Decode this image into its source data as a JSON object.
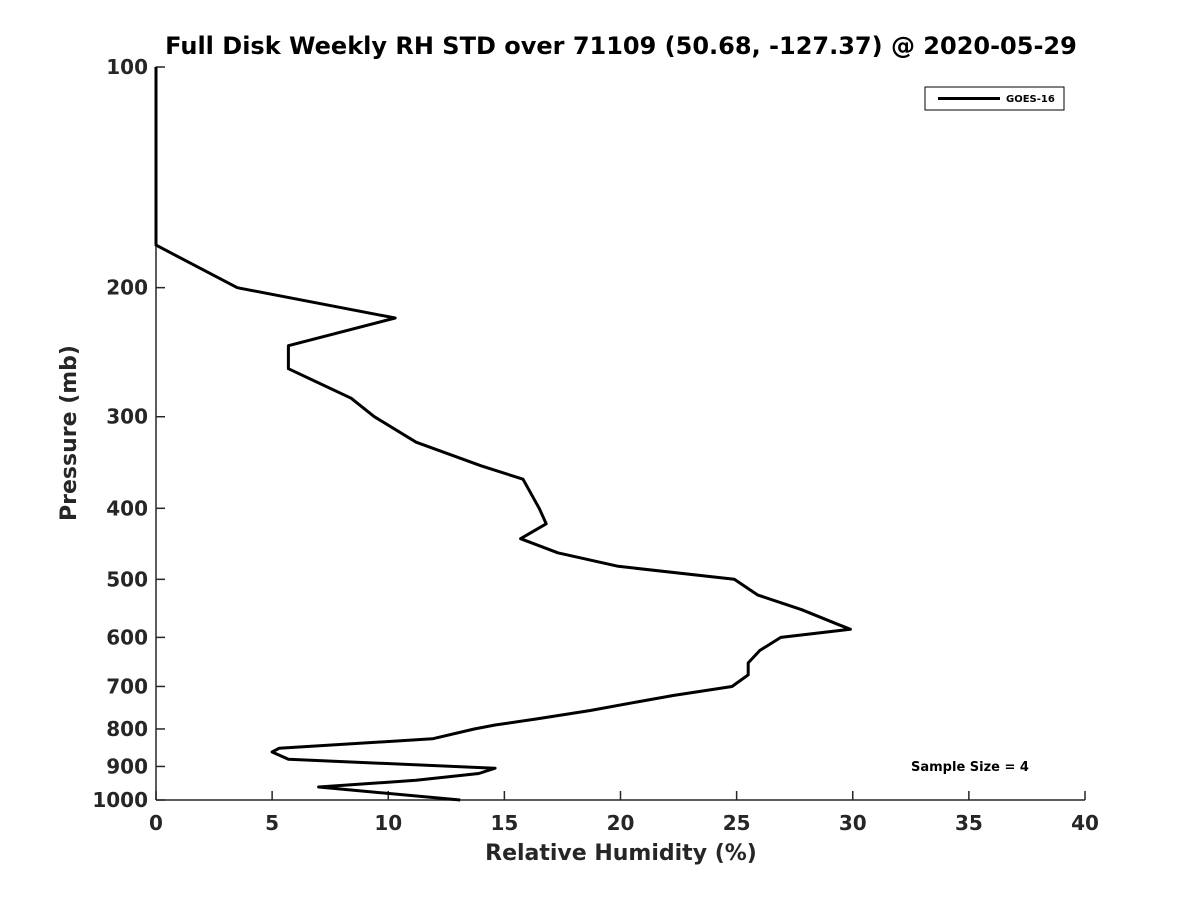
{
  "chart_data": {
    "type": "line",
    "title": "Full Disk Weekly RH STD over 71109 (50.68, -127.37) @ 2020-05-29",
    "xlabel": "Relative Humidity (%)",
    "ylabel": "Pressure (mb)",
    "xlim": [
      0,
      40
    ],
    "ylim": [
      100,
      1000
    ],
    "y_scale": "log",
    "y_reversed": true,
    "x_ticks": [
      "0",
      "5",
      "10",
      "15",
      "20",
      "25",
      "30",
      "35",
      "40"
    ],
    "y_ticks": [
      "100",
      "200",
      "300",
      "400",
      "500",
      "600",
      "700",
      "800",
      "900",
      "1000"
    ],
    "grid": false,
    "legend": {
      "position": "top-right",
      "entries": [
        "GOES-16"
      ]
    },
    "annotation": "Sample Size = 4",
    "series": [
      {
        "name": "GOES-16",
        "color": "#000000",
        "points": [
          [
            0,
            100
          ],
          [
            0,
            125
          ],
          [
            0,
            150
          ],
          [
            0,
            175
          ],
          [
            3.5,
            200
          ],
          [
            10.3,
            220
          ],
          [
            5.7,
            240
          ],
          [
            5.7,
            258
          ],
          [
            8.4,
            283
          ],
          [
            9.4,
            300
          ],
          [
            11.2,
            325
          ],
          [
            14,
            350
          ],
          [
            15.8,
            365
          ],
          [
            16.5,
            400
          ],
          [
            16.8,
            420
          ],
          [
            15.7,
            440
          ],
          [
            17.3,
            460
          ],
          [
            19.9,
            480
          ],
          [
            24.9,
            500
          ],
          [
            25.9,
            525
          ],
          [
            27.8,
            550
          ],
          [
            29.3,
            575
          ],
          [
            29.9,
            585
          ],
          [
            26.9,
            600
          ],
          [
            26,
            625
          ],
          [
            25.5,
            650
          ],
          [
            25.5,
            675
          ],
          [
            24.8,
            700
          ],
          [
            22.3,
            720
          ],
          [
            20.7,
            735
          ],
          [
            18.7,
            755
          ],
          [
            16.4,
            775
          ],
          [
            14.6,
            790
          ],
          [
            13.7,
            800
          ],
          [
            11.9,
            825
          ],
          [
            5.3,
            850
          ],
          [
            5,
            860
          ],
          [
            5.7,
            880
          ],
          [
            14.6,
            905
          ],
          [
            13.9,
            920
          ],
          [
            11.2,
            940
          ],
          [
            7,
            960
          ],
          [
            13.1,
            1000
          ]
        ]
      }
    ]
  }
}
